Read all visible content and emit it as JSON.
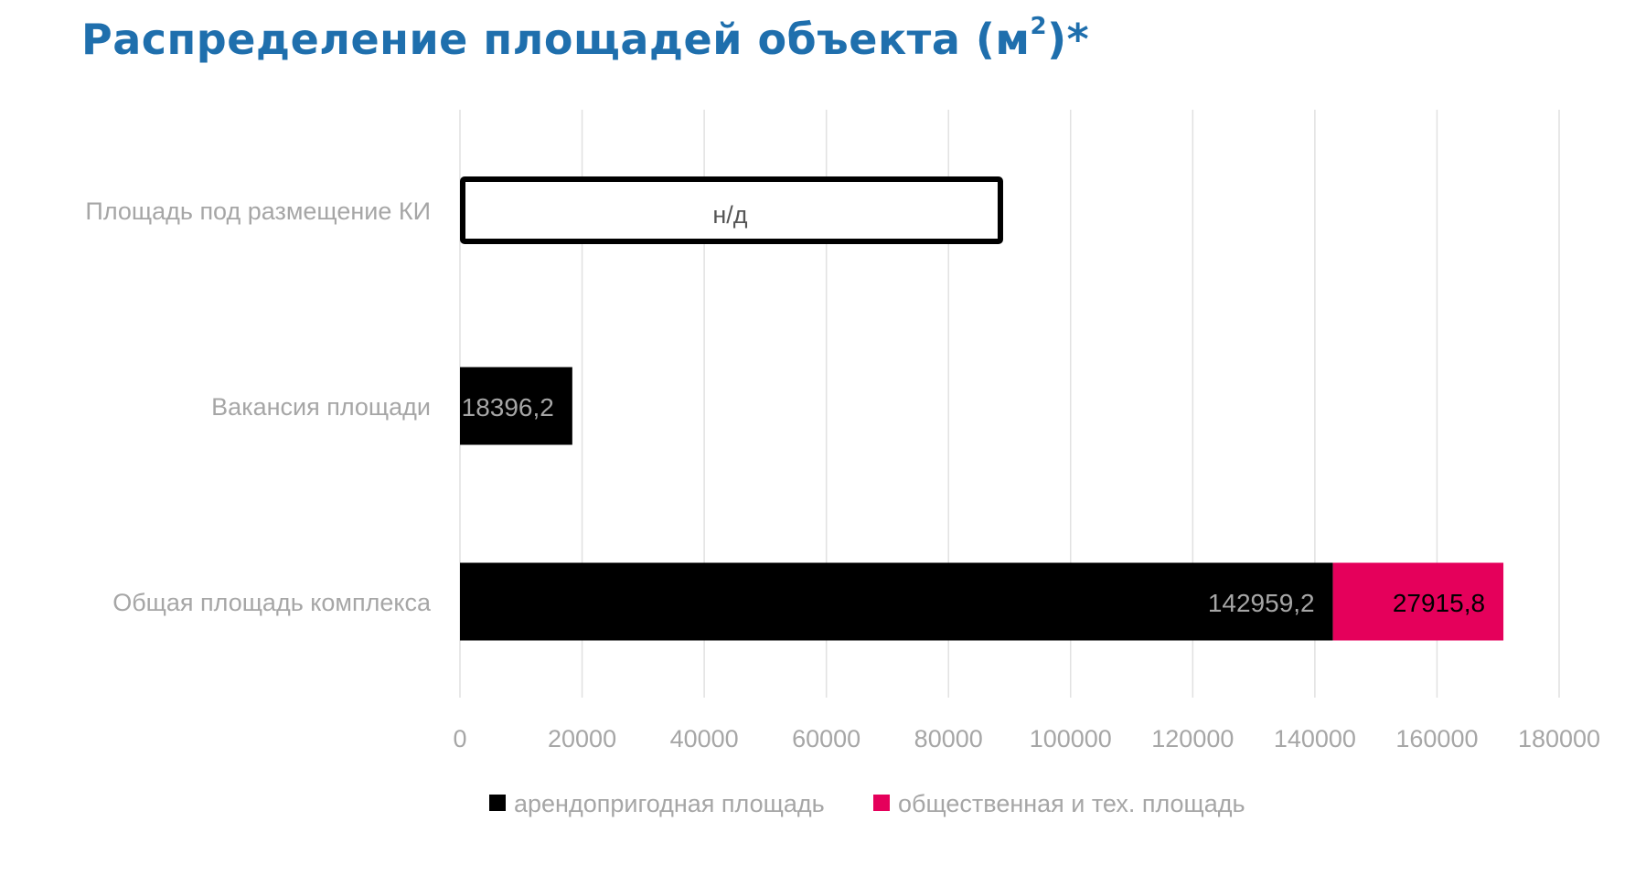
{
  "title": {
    "main": "Распределение площадей объекта (м",
    "sup": "2",
    "end": ")*"
  },
  "chart_data": {
    "type": "bar",
    "orientation": "horizontal",
    "stacked": true,
    "categories": [
      "Площадь под размещение КИ",
      "Вакансия площади",
      "Общая площадь комплекса"
    ],
    "series": [
      {
        "name": "арендопригодная площадь",
        "color": "#000000",
        "values": [
          null,
          18396.2,
          142959.2
        ],
        "labels": [
          "",
          "18396,2",
          "142959,2"
        ]
      },
      {
        "name": "общественная и тех. площадь",
        "color": "#e5005b",
        "values": [
          null,
          null,
          27915.8
        ],
        "labels": [
          "",
          "",
          "27915,8"
        ]
      }
    ],
    "placeholders": [
      {
        "category": "Площадь под размещение КИ",
        "value": 88500,
        "text": "н/д",
        "style": "outline"
      }
    ],
    "xlim": [
      0,
      180000
    ],
    "xticks": [
      0,
      20000,
      40000,
      60000,
      80000,
      100000,
      120000,
      140000,
      160000,
      180000
    ],
    "grid": true,
    "legend": "bottom"
  }
}
